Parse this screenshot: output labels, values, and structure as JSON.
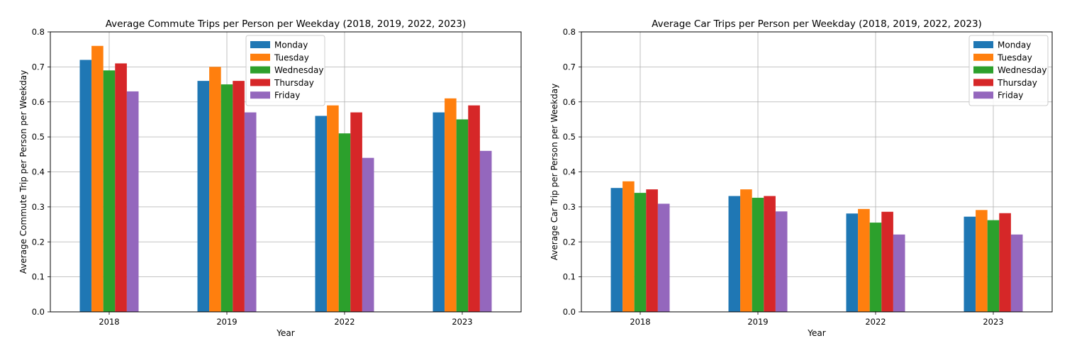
{
  "chart_data": [
    {
      "type": "bar",
      "title": "Average Commute Trips per Person per Weekday (2018, 2019, 2022, 2023)",
      "xlabel": "Year",
      "ylabel": "Average Commute Trip per Person per Weekday",
      "categories": [
        "2018",
        "2019",
        "2022",
        "2023"
      ],
      "ylim": [
        0,
        0.8
      ],
      "yticks": [
        "0.0",
        "0.1",
        "0.2",
        "0.3",
        "0.4",
        "0.5",
        "0.6",
        "0.7",
        "0.8"
      ],
      "grid": true,
      "legend_position": "top-center",
      "series": [
        {
          "name": "Monday",
          "color": "#1f77b4",
          "values": [
            0.72,
            0.66,
            0.56,
            0.57
          ]
        },
        {
          "name": "Tuesday",
          "color": "#ff7f0e",
          "values": [
            0.76,
            0.7,
            0.59,
            0.61
          ]
        },
        {
          "name": "Wednesday",
          "color": "#2ca02c",
          "values": [
            0.69,
            0.65,
            0.51,
            0.55
          ]
        },
        {
          "name": "Thursday",
          "color": "#d62728",
          "values": [
            0.71,
            0.66,
            0.57,
            0.59
          ]
        },
        {
          "name": "Friday",
          "color": "#9467bd",
          "values": [
            0.63,
            0.57,
            0.44,
            0.46
          ]
        }
      ]
    },
    {
      "type": "bar",
      "title": "Average Car Trips per Person per Weekday (2018, 2019, 2022, 2023)",
      "xlabel": "Year",
      "ylabel": "Average Car Trip per Person per Weekday",
      "categories": [
        "2018",
        "2019",
        "2022",
        "2023"
      ],
      "ylim": [
        0,
        0.8
      ],
      "yticks": [
        "0.0",
        "0.1",
        "0.2",
        "0.3",
        "0.4",
        "0.5",
        "0.6",
        "0.7",
        "0.8"
      ],
      "grid": true,
      "legend_position": "top-right",
      "series": [
        {
          "name": "Monday",
          "color": "#1f77b4",
          "values": [
            0.354,
            0.331,
            0.281,
            0.272
          ]
        },
        {
          "name": "Tuesday",
          "color": "#ff7f0e",
          "values": [
            0.373,
            0.35,
            0.294,
            0.291
          ]
        },
        {
          "name": "Wednesday",
          "color": "#2ca02c",
          "values": [
            0.34,
            0.326,
            0.255,
            0.262
          ]
        },
        {
          "name": "Thursday",
          "color": "#d62728",
          "values": [
            0.35,
            0.331,
            0.286,
            0.282
          ]
        },
        {
          "name": "Friday",
          "color": "#9467bd",
          "values": [
            0.309,
            0.287,
            0.221,
            0.221
          ]
        }
      ]
    }
  ]
}
